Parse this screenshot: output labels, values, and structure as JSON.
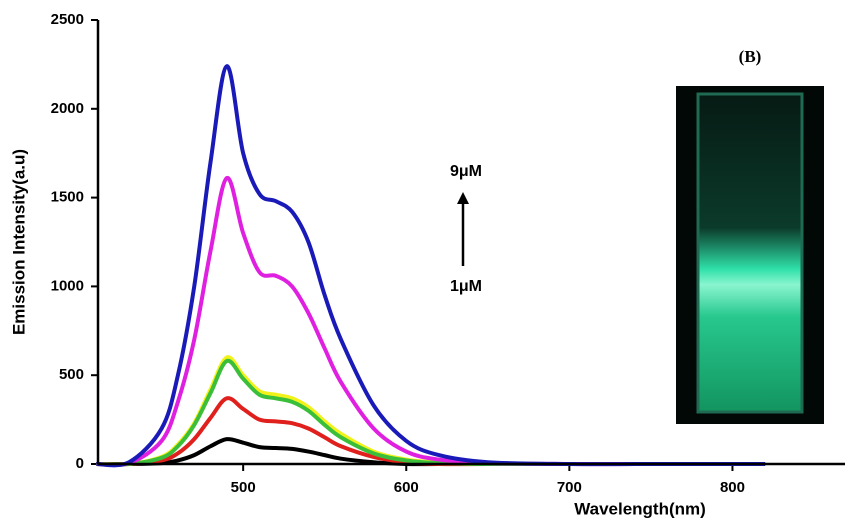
{
  "chart_data": {
    "type": "line",
    "x_label": "Wavelength(nm)",
    "y_label": "Emission Intensity(a.u)",
    "annotations": [
      "9μM",
      "1μM",
      "(B)"
    ],
    "x": [
      410,
      430,
      450,
      460,
      470,
      480,
      490,
      500,
      510,
      520,
      530,
      540,
      550,
      560,
      580,
      600,
      620,
      650,
      700,
      750,
      820
    ],
    "series": [
      {
        "color": "#000000",
        "values": [
          0,
          0,
          5,
          20,
          50,
          100,
          140,
          120,
          95,
          90,
          85,
          70,
          50,
          30,
          10,
          0,
          0,
          0,
          0,
          0,
          0
        ]
      },
      {
        "color": "#e0201c",
        "values": [
          0,
          0,
          20,
          60,
          140,
          260,
          370,
          310,
          250,
          240,
          230,
          200,
          150,
          100,
          40,
          10,
          0,
          0,
          0,
          0,
          0
        ]
      },
      {
        "color": "#f2f21a",
        "values": [
          0,
          0,
          40,
          110,
          230,
          420,
          600,
          500,
          410,
          390,
          370,
          320,
          240,
          170,
          70,
          25,
          8,
          0,
          0,
          0,
          0
        ]
      },
      {
        "color": "#3bbf3b",
        "values": [
          0,
          0,
          35,
          100,
          220,
          400,
          580,
          480,
          390,
          370,
          350,
          300,
          220,
          150,
          60,
          20,
          5,
          0,
          0,
          0,
          0
        ]
      },
      {
        "color": "#e020e0",
        "values": [
          0,
          5,
          130,
          350,
          700,
          1200,
          1610,
          1300,
          1080,
          1060,
          1000,
          850,
          650,
          460,
          200,
          70,
          25,
          5,
          0,
          0,
          0
        ]
      },
      {
        "color": "#1a1ab8",
        "values": [
          0,
          10,
          200,
          500,
          1000,
          1700,
          2240,
          1750,
          1520,
          1480,
          1420,
          1250,
          950,
          700,
          330,
          130,
          50,
          10,
          0,
          0,
          0
        ]
      }
    ],
    "xlim": [
      411,
      869
    ],
    "xticks": [
      500,
      600,
      700,
      800
    ],
    "ylim": [
      0,
      2500
    ],
    "yticks": [
      0,
      500,
      1000,
      1500,
      2000,
      2500
    ]
  }
}
